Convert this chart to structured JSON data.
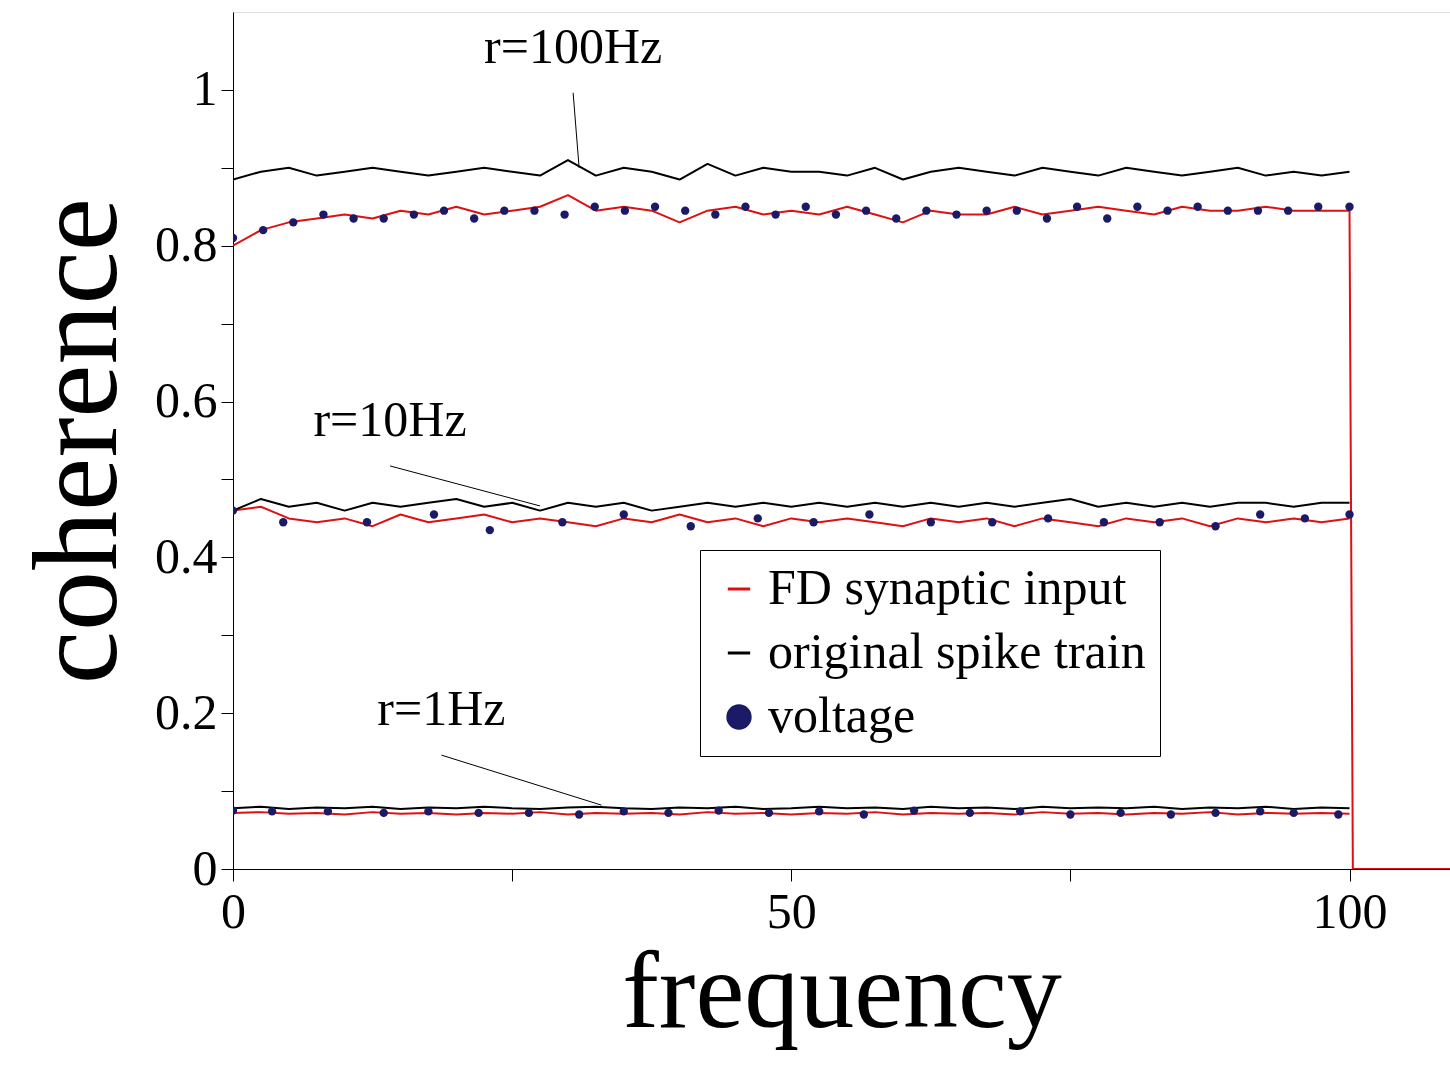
{
  "chart_data": {
    "type": "line",
    "xlabel": "frequency",
    "ylabel": "coherence",
    "xlim": [
      0,
      109
    ],
    "ylim": [
      0,
      1.1
    ],
    "xticks": [
      0,
      {
        "value": 25,
        "label": null
      },
      50,
      {
        "value": 75,
        "label": null
      },
      100
    ],
    "yticks": [
      0,
      {
        "value": 0.1,
        "label": null
      },
      0.2,
      {
        "value": 0.3,
        "label": null
      },
      0.4,
      {
        "value": 0.5,
        "label": null
      },
      0.6,
      {
        "value": 0.7,
        "label": null
      },
      0.8,
      {
        "value": 0.9,
        "label": null
      },
      1
    ],
    "grid": false,
    "legend": "bottom right",
    "line_style": "solid",
    "x": [
      0,
      2.5,
      5,
      7.5,
      10,
      12.5,
      15,
      17.5,
      20,
      22.5,
      25,
      27.5,
      30,
      32.5,
      35,
      37.5,
      40,
      42.5,
      45,
      47.5,
      50,
      52.5,
      55,
      57.5,
      60,
      62.5,
      65,
      67.5,
      70,
      72.5,
      75,
      77.5,
      80,
      82.5,
      85,
      87.5,
      90,
      92.5,
      95,
      97.5,
      100
    ],
    "series": [
      {
        "name": "FD synaptic input",
        "color": "#dd1111",
        "marker": "none",
        "x": [
          0,
          2.5,
          5,
          7.5,
          10,
          12.5,
          15,
          17.5,
          20,
          22.5,
          25,
          27.5,
          30,
          32.5,
          35,
          37.5,
          40,
          42.5,
          45,
          47.5,
          50,
          52.5,
          55,
          57.5,
          60,
          62.5,
          65,
          67.5,
          70,
          72.5,
          75,
          77.5,
          80,
          82.5,
          85,
          87.5,
          90,
          92.5,
          95,
          97.5,
          100,
          100.3,
          109
        ],
        "values": [
          0.8,
          0.82,
          0.83,
          0.835,
          0.84,
          0.835,
          0.845,
          0.84,
          0.85,
          0.84,
          0.845,
          0.85,
          0.865,
          0.845,
          0.85,
          0.845,
          0.83,
          0.845,
          0.85,
          0.84,
          0.845,
          0.84,
          0.85,
          0.84,
          0.83,
          0.845,
          0.84,
          0.84,
          0.85,
          0.84,
          0.845,
          0.85,
          0.845,
          0.84,
          0.85,
          0.845,
          0.845,
          0.85,
          0.845,
          0.845,
          0.845,
          0,
          0
        ]
      },
      {
        "color": "#dd1111",
        "marker": "none",
        "values": [
          0.46,
          0.465,
          0.45,
          0.445,
          0.45,
          0.44,
          0.455,
          0.445,
          0.45,
          0.455,
          0.445,
          0.45,
          0.445,
          0.44,
          0.45,
          0.445,
          0.455,
          0.445,
          0.45,
          0.44,
          0.45,
          0.445,
          0.45,
          0.445,
          0.44,
          0.45,
          0.445,
          0.45,
          0.44,
          0.45,
          0.445,
          0.44,
          0.45,
          0.445,
          0.45,
          0.44,
          0.45,
          0.445,
          0.45,
          0.445,
          0.45
        ]
      },
      {
        "color": "#dd1111",
        "marker": "none",
        "values": [
          0.072,
          0.073,
          0.071,
          0.072,
          0.07,
          0.073,
          0.071,
          0.072,
          0.07,
          0.072,
          0.071,
          0.073,
          0.07,
          0.072,
          0.071,
          0.072,
          0.07,
          0.073,
          0.071,
          0.072,
          0.07,
          0.072,
          0.071,
          0.073,
          0.07,
          0.072,
          0.071,
          0.072,
          0.07,
          0.073,
          0.071,
          0.072,
          0.07,
          0.072,
          0.071,
          0.073,
          0.07,
          0.072,
          0.071,
          0.072,
          0.071
        ]
      },
      {
        "name": "original spike train",
        "color": "#000000",
        "marker": "none",
        "values": [
          0.885,
          0.895,
          0.9,
          0.89,
          0.895,
          0.9,
          0.895,
          0.89,
          0.895,
          0.9,
          0.895,
          0.89,
          0.91,
          0.89,
          0.9,
          0.895,
          0.885,
          0.905,
          0.89,
          0.9,
          0.895,
          0.895,
          0.89,
          0.9,
          0.885,
          0.895,
          0.9,
          0.895,
          0.89,
          0.9,
          0.895,
          0.89,
          0.9,
          0.895,
          0.89,
          0.895,
          0.9,
          0.89,
          0.895,
          0.89,
          0.895
        ]
      },
      {
        "color": "#000000",
        "marker": "none",
        "values": [
          0.46,
          0.475,
          0.465,
          0.47,
          0.46,
          0.47,
          0.465,
          0.47,
          0.475,
          0.465,
          0.47,
          0.46,
          0.47,
          0.465,
          0.47,
          0.46,
          0.465,
          0.47,
          0.465,
          0.47,
          0.465,
          0.47,
          0.465,
          0.47,
          0.465,
          0.47,
          0.465,
          0.47,
          0.465,
          0.47,
          0.475,
          0.465,
          0.47,
          0.465,
          0.47,
          0.465,
          0.47,
          0.47,
          0.465,
          0.47,
          0.47
        ]
      },
      {
        "color": "#000000",
        "marker": "none",
        "values": [
          0.078,
          0.08,
          0.077,
          0.079,
          0.078,
          0.08,
          0.077,
          0.079,
          0.078,
          0.08,
          0.078,
          0.077,
          0.079,
          0.08,
          0.078,
          0.077,
          0.079,
          0.078,
          0.08,
          0.077,
          0.078,
          0.08,
          0.078,
          0.079,
          0.077,
          0.08,
          0.078,
          0.079,
          0.077,
          0.08,
          0.078,
          0.079,
          0.078,
          0.08,
          0.077,
          0.079,
          0.078,
          0.08,
          0.077,
          0.079,
          0.078
        ]
      },
      {
        "name": "voltage",
        "color": "#1a1a66",
        "type": "scatter",
        "marker": "circle",
        "x": [
          0,
          2.7,
          5.4,
          8.1,
          10.8,
          13.5,
          16.2,
          18.9,
          21.6,
          24.3,
          27,
          29.7,
          32.4,
          35.1,
          37.8,
          40.5,
          43.2,
          45.9,
          48.6,
          51.3,
          54,
          56.7,
          59.4,
          62.1,
          64.8,
          67.5,
          70.2,
          72.9,
          75.6,
          78.3,
          81,
          83.7,
          86.4,
          89.1,
          91.8,
          94.5,
          97.2,
          100
        ],
        "values": [
          0.81,
          0.82,
          0.83,
          0.84,
          0.835,
          0.835,
          0.84,
          0.845,
          0.835,
          0.845,
          0.845,
          0.84,
          0.85,
          0.845,
          0.85,
          0.845,
          0.84,
          0.85,
          0.84,
          0.85,
          0.84,
          0.845,
          0.835,
          0.845,
          0.84,
          0.845,
          0.845,
          0.835,
          0.85,
          0.835,
          0.85,
          0.845,
          0.85,
          0.845,
          0.845,
          0.845,
          0.85,
          0.85
        ]
      },
      {
        "color": "#1a1a66",
        "type": "scatter",
        "marker": "circle",
        "x": [
          0,
          4.5,
          12,
          18,
          23,
          29.5,
          35,
          41,
          47,
          52,
          57,
          62.5,
          68,
          73,
          78,
          83,
          88,
          92,
          96,
          100
        ],
        "values": [
          0.46,
          0.445,
          0.445,
          0.455,
          0.435,
          0.445,
          0.455,
          0.44,
          0.45,
          0.445,
          0.455,
          0.445,
          0.445,
          0.45,
          0.445,
          0.445,
          0.44,
          0.455,
          0.45,
          0.455
        ]
      },
      {
        "color": "#1a1a66",
        "type": "scatter",
        "marker": "circle",
        "x": [
          0,
          3.5,
          8.5,
          13.5,
          17.5,
          22,
          26.5,
          31,
          35,
          39,
          43.5,
          48,
          52.5,
          56.5,
          61,
          66,
          70.5,
          75,
          79.5,
          84,
          88,
          92,
          95,
          99
        ],
        "values": [
          0.075,
          0.074,
          0.074,
          0.072,
          0.074,
          0.072,
          0.072,
          0.07,
          0.074,
          0.072,
          0.075,
          0.072,
          0.074,
          0.07,
          0.075,
          0.072,
          0.074,
          0.07,
          0.072,
          0.07,
          0.072,
          0.074,
          0.072,
          0.07
        ]
      }
    ],
    "annotations": [
      {
        "text": "r=100Hz",
        "x": 31,
        "y": 0.9
      },
      {
        "text": "r=10Hz",
        "x": 27.5,
        "y": 0.466
      },
      {
        "text": "r=1Hz",
        "x": 33,
        "y": 0.082
      }
    ]
  }
}
